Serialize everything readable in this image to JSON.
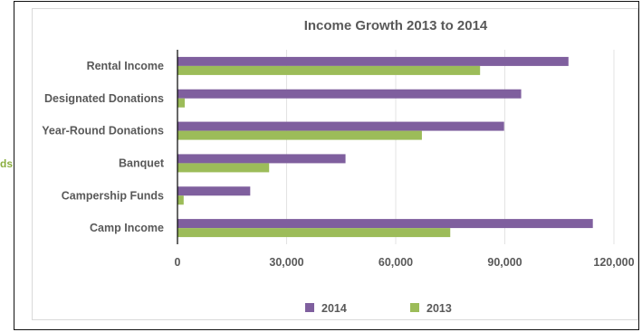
{
  "side_label": "ds",
  "chart_data": {
    "type": "bar",
    "orientation": "horizontal",
    "title": "Income Growth 2013 to 2014",
    "categories": [
      "Rental Income",
      "Designated Donations",
      "Year-Round Donations",
      "Banquet",
      "Campership Funds",
      "Camp Income"
    ],
    "series": [
      {
        "name": "2014",
        "color": "#7f5f9e",
        "values": [
          107500,
          94500,
          89800,
          46200,
          20000,
          114200
        ]
      },
      {
        "name": "2013",
        "color": "#9cbc59",
        "values": [
          83200,
          2000,
          67200,
          25200,
          1700,
          75000
        ]
      }
    ],
    "xlim": [
      0,
      120000
    ],
    "xticks": [
      0,
      30000,
      60000,
      90000,
      120000
    ],
    "xtick_labels": [
      "0",
      "30,000",
      "60,000",
      "90,000",
      "120,000"
    ],
    "grid": "vertical",
    "legend": "bottom"
  }
}
